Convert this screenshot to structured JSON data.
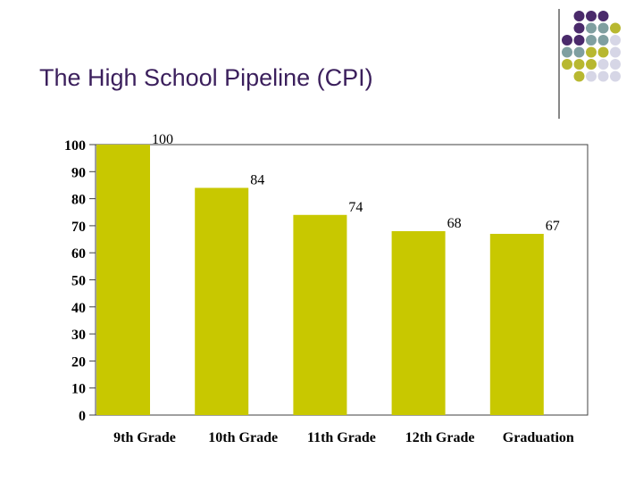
{
  "slide": {
    "title": "The High School Pipeline (CPI)"
  },
  "colors": {
    "title": "#3b1f5c",
    "bar": "#c8c800",
    "decor_purple": "#4a2a6b",
    "decor_teal": "#7f9fa0",
    "decor_olive": "#b8b830",
    "decor_lavender": "#d6d6e6"
  },
  "chart_data": {
    "type": "bar",
    "categories": [
      "9th Grade",
      "10th Grade",
      "11th Grade",
      "12th Grade",
      "Graduation"
    ],
    "values": [
      100,
      84,
      74,
      68,
      67
    ],
    "data_labels": [
      "100",
      "84",
      "74",
      "68",
      "67"
    ],
    "yticks": [
      "0",
      "10",
      "20",
      "30",
      "40",
      "50",
      "60",
      "70",
      "80",
      "90",
      "100"
    ],
    "ylim": [
      0,
      100
    ],
    "title": "",
    "xlabel": "",
    "ylabel": "",
    "grid": false,
    "legend": "none"
  }
}
